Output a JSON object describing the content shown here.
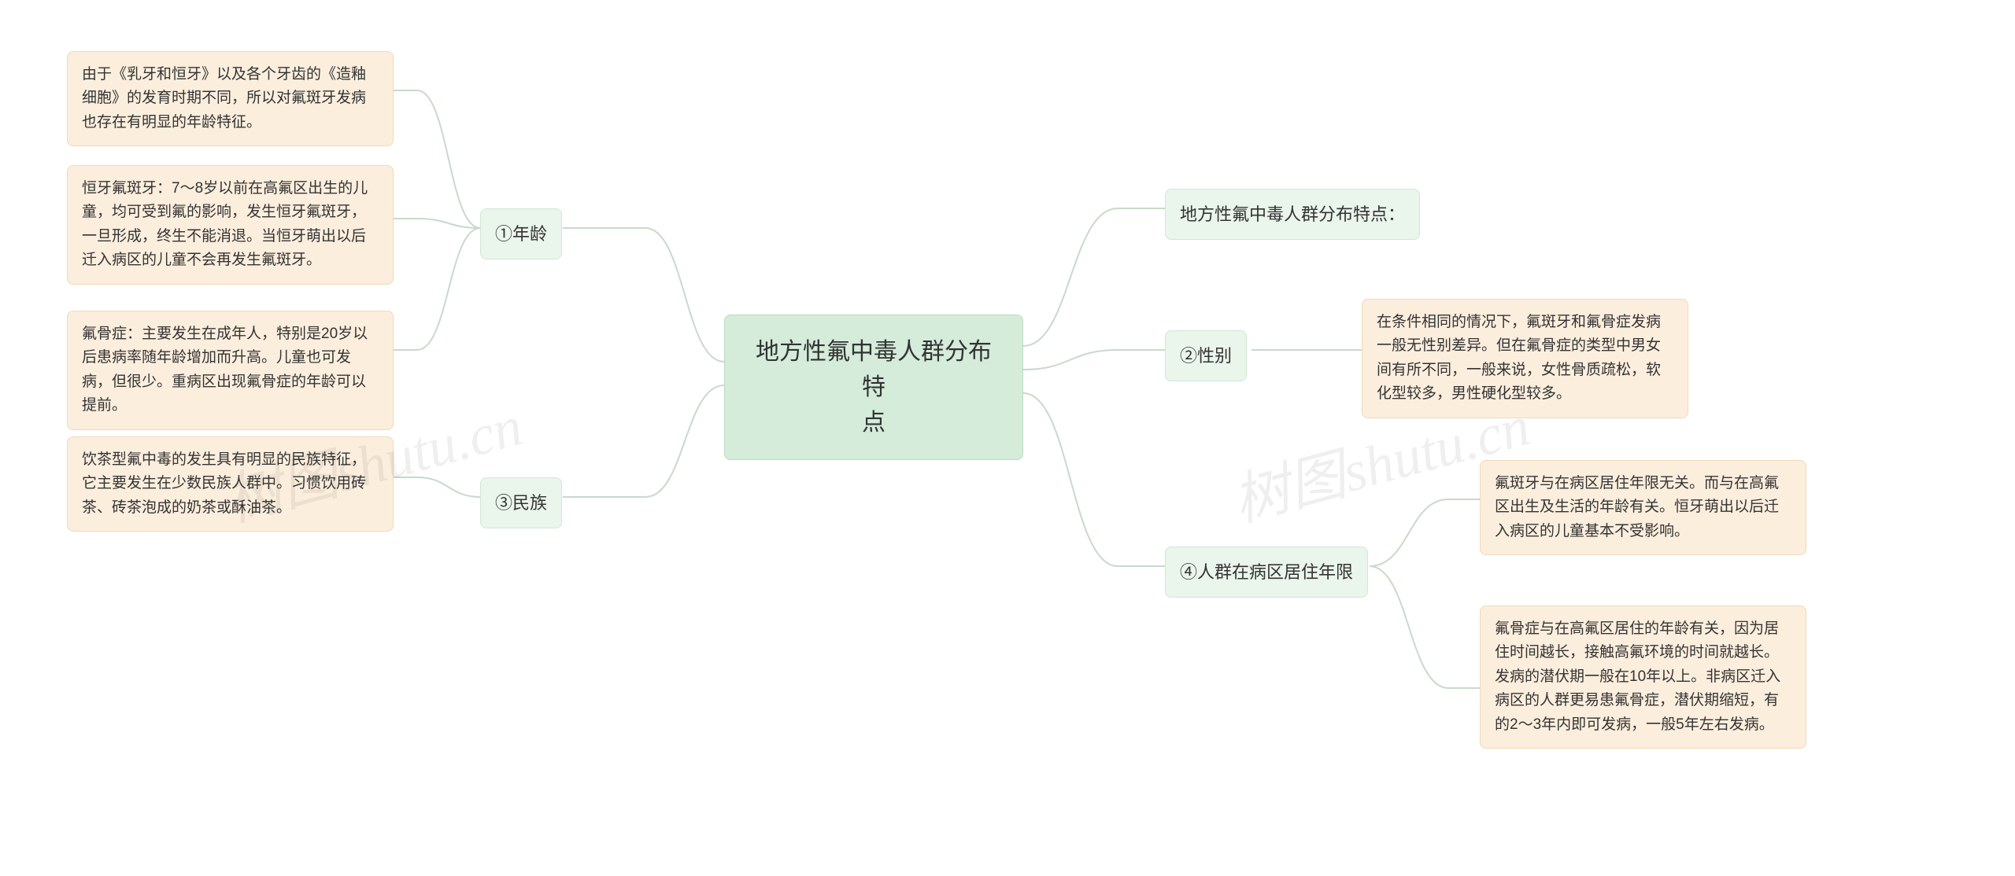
{
  "center": {
    "title": "地方性氟中毒人群分布特\n点"
  },
  "left": {
    "age": {
      "label": "①年龄",
      "items": [
        "由于《乳牙和恒牙》以及各个牙齿的《造釉细胞》的发育时期不同，所以对氟斑牙发病也存在有明显的年龄特征。",
        "恒牙氟斑牙：7～8岁以前在高氟区出生的儿童，均可受到氟的影响，发生恒牙氟斑牙，一旦形成，终生不能消退。当恒牙萌出以后迁入病区的儿童不会再发生氟斑牙。",
        "氟骨症：主要发生在成年人，特别是20岁以后患病率随年龄增加而升高。儿童也可发病，但很少。重病区出现氟骨症的年龄可以提前。"
      ]
    },
    "ethnic": {
      "label": "③民族",
      "items": [
        "饮茶型氟中毒的发生具有明显的民族特征，它主要发生在少数民族人群中。习惯饮用砖茶、砖茶泡成的奶茶或酥油茶。"
      ]
    }
  },
  "right": {
    "intro": {
      "label": "地方性氟中毒人群分布特点："
    },
    "gender": {
      "label": "②性别",
      "items": [
        "在条件相同的情况下，氟斑牙和氟骨症发病一般无性别差异。但在氟骨症的类型中男女间有所不同，一般来说，女性骨质疏松，软化型较多，男性硬化型较多。"
      ]
    },
    "residence": {
      "label": "④人群在病区居住年限",
      "items": [
        "氟斑牙与在病区居住年限无关。而与在高氟区出生及生活的年龄有关。恒牙萌出以后迁入病区的儿童基本不受影响。",
        "氟骨症与在高氟区居住的年龄有关，因为居住时间越长，接触高氟环境的时间就越长。发病的潜伏期一般在10年以上。非病区迁入病区的人群更易患氟骨症，潜伏期缩短，有的2～3年内即可发病，一般5年左右发病。"
      ]
    }
  },
  "watermarks": [
    "树图shutu.cn",
    "树图shutu.cn"
  ],
  "colors": {
    "center_bg": "#d4ecd9",
    "center_border": "#b8dcc0",
    "branch_bg": "#eaf5ec",
    "branch_border": "#d0e8d4",
    "leaf_bg": "#fceedd",
    "leaf_border": "#f0d9b8",
    "connector": "#c8dac9",
    "background": "#ffffff",
    "text": "#333333"
  }
}
